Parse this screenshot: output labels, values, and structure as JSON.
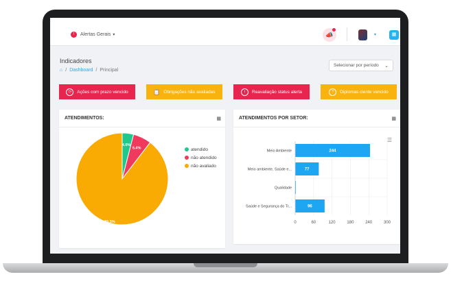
{
  "topbar": {
    "alerts_label": "Alertas Gerais",
    "alerts_caret": "▾",
    "avatar_caret": "▾"
  },
  "page": {
    "title": "Indicadores",
    "breadcrumb": [
      "Dashboard",
      "Principal"
    ],
    "period_select": "Selecionar por período"
  },
  "tiles": [
    {
      "label": "Ações com prazo vencido",
      "icon": "clock-icon",
      "color": "#e8254f"
    },
    {
      "label": "Obrigações não avaliadas",
      "icon": "clipboard-icon",
      "color": "#f9b30f"
    },
    {
      "label": "Reavaliação status alerta",
      "icon": "info-icon",
      "color": "#e8254f"
    },
    {
      "label": "Diplomas ciente vencido",
      "icon": "help-icon",
      "color": "#f9b30f"
    }
  ],
  "cards": {
    "atendimentos_title": "ATENDIMENTOS:",
    "setor_title": "ATENDIMENTOS POR SETOR:"
  },
  "chart_data": [
    {
      "type": "pie",
      "slices": [
        {
          "label": "atendido",
          "value": 4.0,
          "display": "4.0%",
          "color": "#1ec98b"
        },
        {
          "label": "não atendido",
          "value": 6.4,
          "display": "6.4%",
          "color": "#ef3a5d"
        },
        {
          "label": "não avaliado",
          "value": 89.5,
          "display": "89.5%",
          "color": "#f9ab03"
        }
      ],
      "legend_position": "right"
    },
    {
      "type": "bar",
      "orientation": "horizontal",
      "categories": [
        "Meio Ambiente",
        "Meio ambiente, Saúde e...",
        "Qualidade",
        "Saúde e Segurança do Tr..."
      ],
      "values": [
        244,
        77,
        0,
        96
      ],
      "color": "#1ea6f3",
      "xticks": [
        0,
        60,
        120,
        180,
        240,
        300
      ],
      "xlim": [
        0,
        300
      ],
      "grid": true
    }
  ]
}
